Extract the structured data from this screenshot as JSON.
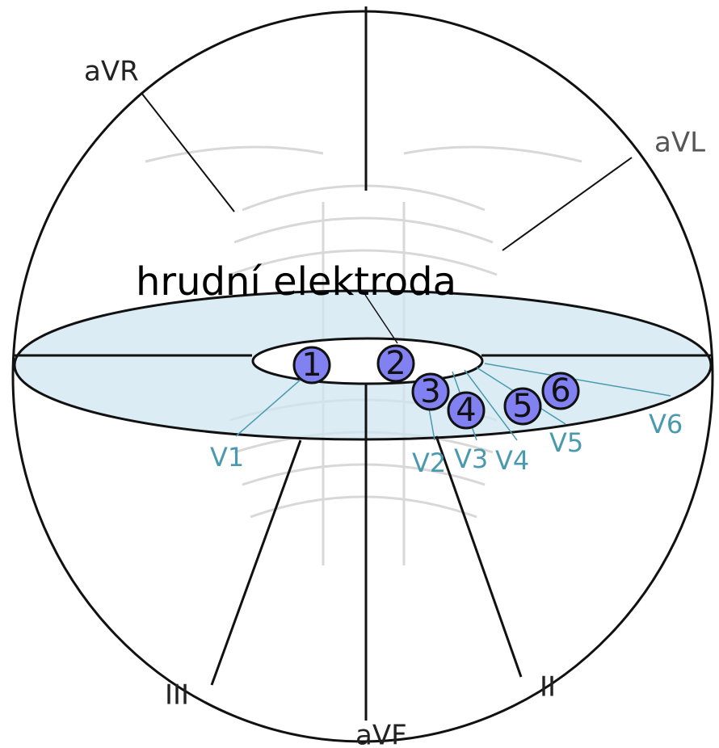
{
  "title": "hrudní elektroda",
  "limb_leads": [
    {
      "label": "aVR"
    },
    {
      "label": "aVL"
    },
    {
      "label": "III"
    },
    {
      "label": "aVF"
    },
    {
      "label": "II"
    }
  ],
  "chest_leads": [
    {
      "label": "V1",
      "electrode": 1
    },
    {
      "label": "V2",
      "electrode": 2
    },
    {
      "label": "V3",
      "electrode": 3
    },
    {
      "label": "V4",
      "electrode": 4
    },
    {
      "label": "V5",
      "electrode": 5
    },
    {
      "label": "V6",
      "electrode": 6
    }
  ]
}
